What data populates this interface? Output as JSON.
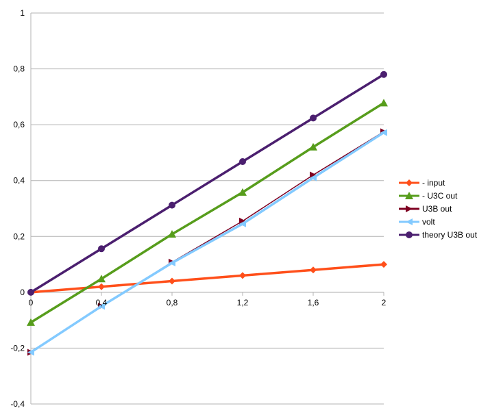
{
  "chart_data": {
    "type": "line",
    "x": [
      0,
      0.4,
      0.8,
      1.2,
      1.6,
      2
    ],
    "xlim": [
      0,
      2
    ],
    "ylim": [
      -0.4,
      1
    ],
    "x_ticks": [
      "0",
      "0,4",
      "0,8",
      "1,2",
      "1,6",
      "2"
    ],
    "y_ticks": [
      "1",
      "0,8",
      "0,6",
      "0,4",
      "0,2",
      "0",
      "-0,2",
      "-0,4"
    ],
    "y_tick_values": [
      1,
      0.8,
      0.6,
      0.4,
      0.2,
      0,
      -0.2,
      -0.4
    ],
    "grid": "horizontal",
    "legend_position": "right",
    "series": [
      {
        "name": "- input",
        "color": "#ff4f1a",
        "marker": "diamond",
        "values": [
          0,
          0.02,
          0.04,
          0.06,
          0.08,
          0.1
        ]
      },
      {
        "name": "- U3C out",
        "color": "#579d1c",
        "marker": "triangle",
        "values": [
          -0.108,
          0.048,
          0.208,
          0.358,
          0.52,
          0.678
        ]
      },
      {
        "name": "U3B out",
        "color": "#7e0021",
        "marker": "arrow",
        "values": [
          -0.215,
          -0.05,
          0.108,
          0.255,
          0.42,
          0.575
        ]
      },
      {
        "name": "volt",
        "color": "#83caff",
        "marker": "arrow-left",
        "values": [
          -0.215,
          -0.05,
          0.105,
          0.245,
          0.41,
          0.572
        ]
      },
      {
        "name": "theory U3B out",
        "color": "#4b1f6f",
        "marker": "circle",
        "values": [
          0,
          0.156,
          0.312,
          0.468,
          0.624,
          0.78
        ]
      }
    ]
  }
}
